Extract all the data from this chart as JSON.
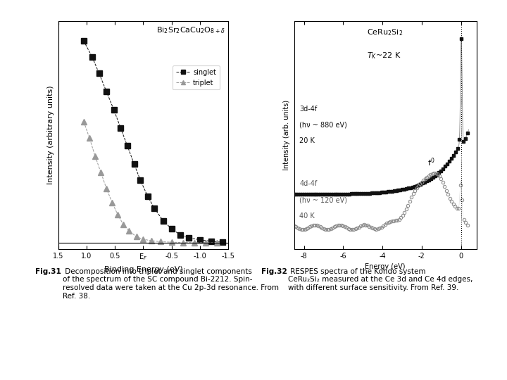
{
  "fig_width": 7.2,
  "fig_height": 5.4,
  "dpi": 100,
  "bg_color": "#ffffff",
  "plot1": {
    "title": "Bi$_2$Sr$_2$CaCu$_2$O$_{8+\\delta}$",
    "xlabel": "Binding Energy (eV)",
    "ylabel": "Intensity (arbitrary units)",
    "xlim": [
      1.5,
      -1.5
    ],
    "ylim": [
      -0.03,
      1.1
    ],
    "xticks": [
      1.5,
      1.0,
      0.5,
      0.0,
      -0.5,
      -1.0,
      -1.5
    ],
    "xticklabels": [
      "1.5",
      "1.0",
      "0.5",
      "E$_F$",
      "-0.5",
      "-1.0",
      "-1.5"
    ],
    "singlet_x": [
      1.05,
      0.9,
      0.78,
      0.65,
      0.52,
      0.4,
      0.28,
      0.16,
      0.05,
      -0.08,
      -0.2,
      -0.35,
      -0.5,
      -0.65,
      -0.8,
      -1.0,
      -1.2,
      -1.4
    ],
    "singlet_y": [
      1.0,
      0.92,
      0.84,
      0.75,
      0.66,
      0.57,
      0.48,
      0.39,
      0.31,
      0.23,
      0.17,
      0.11,
      0.07,
      0.04,
      0.025,
      0.015,
      0.008,
      0.003
    ],
    "triplet_x": [
      1.05,
      0.95,
      0.85,
      0.75,
      0.65,
      0.55,
      0.45,
      0.35,
      0.25,
      0.12,
      0.0,
      -0.15,
      -0.3,
      -0.5,
      -0.7,
      -0.9,
      -1.1,
      -1.3
    ],
    "triplet_y": [
      0.6,
      0.52,
      0.43,
      0.35,
      0.27,
      0.2,
      0.14,
      0.09,
      0.06,
      0.03,
      0.018,
      0.01,
      0.006,
      0.003,
      0.002,
      0.001,
      0.0005,
      0.0002
    ],
    "singlet_color": "#111111",
    "triplet_color": "#999999",
    "legend_singlet": "singlet",
    "legend_triplet": "triplet",
    "title_fontsize": 8,
    "label_fontsize": 8,
    "tick_fontsize": 7
  },
  "plot2": {
    "title_line1": "CeRu$_2$Si$_2$",
    "title_line2": "$T_K$~22 K",
    "xlabel": "Energy (eV)",
    "ylabel": "Intensity (arb. units)",
    "xlim": [
      -8.5,
      0.8
    ],
    "ylim": [
      -0.25,
      1.1
    ],
    "xticks": [
      -8,
      -6,
      -4,
      -2,
      0
    ],
    "xticklabels": [
      "-8",
      "-6",
      "-4",
      "-2",
      "0"
    ],
    "label1_line1": "3d-4f",
    "label1_line2": "(hν ~ 880 eV)",
    "label1_line3": "20 K",
    "label2_line1": "4d-4f",
    "label2_line2": "(hν ~ 120 eV)",
    "label2_line3": "40 K",
    "label_f0": "f$^0$",
    "curve1_color": "#111111",
    "curve2_color": "#888888",
    "title_fontsize": 8,
    "label_fontsize": 7,
    "tick_fontsize": 7
  },
  "caption1_bold": "Fig.31",
  "caption1_dot": ".",
  "caption1_text": " Decomposition into triplet and singlet components\nof the spectrum of the SC compound Bi-2212. Spin-\nresolved data were taken at the Cu 2p-3d resonance. From\nRef. 38.",
  "caption2_bold": "Fig.32",
  "caption2_dot": ".",
  "caption2_text": " RESPES spectra of the Kondo system\nCeRu₂Si₂ measured at the Ce 3d and Ce 4d edges,\nwith different surface sensitivity. From Ref. 39.",
  "caption_fontsize": 7.5
}
